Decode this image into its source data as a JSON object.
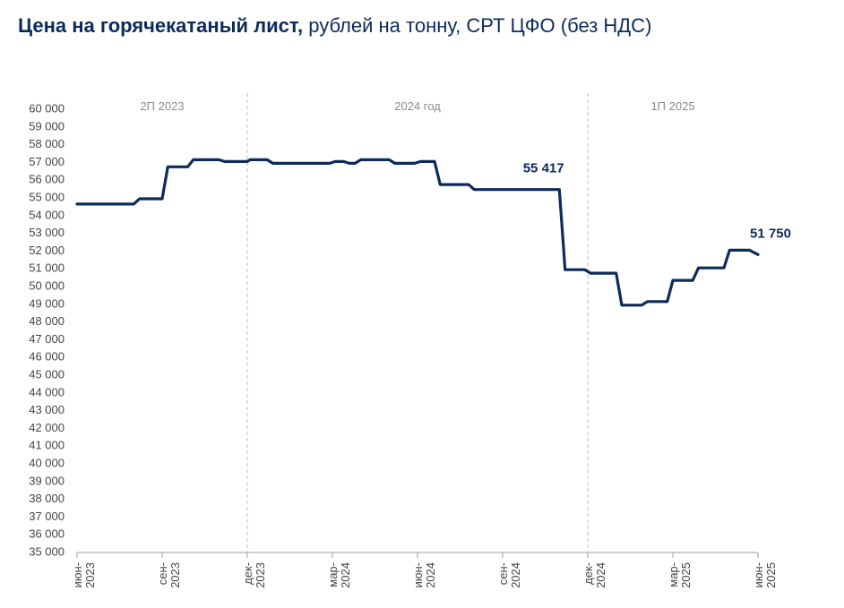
{
  "title_bold": "Цена на горячекатаный лист,",
  "title_rest": " рублей на тонну, СРТ ЦФО (без НДС)",
  "colors": {
    "line": "#0d2a5c",
    "title": "#0d2a5c",
    "axis": "#444444",
    "divider": "#bdbdbd",
    "period": "#8c8c8c"
  },
  "chart_data": {
    "type": "line",
    "title": "Цена на горячекатаный лист, рублей на тонну, СРТ ЦФО (без НДС)",
    "xlabel": "",
    "ylabel": "",
    "ylim": [
      35000,
      60000
    ],
    "ytick_step": 1000,
    "grid": false,
    "x_ticks": [
      {
        "line1": "июн-",
        "line2": "2023",
        "x": 0
      },
      {
        "line1": "сен-",
        "line2": "2023",
        "x": 3
      },
      {
        "line1": "дек-",
        "line2": "2023",
        "x": 6
      },
      {
        "line1": "мар-",
        "line2": "2024",
        "x": 9
      },
      {
        "line1": "июн-",
        "line2": "2024",
        "x": 12
      },
      {
        "line1": "сен-",
        "line2": "2024",
        "x": 15
      },
      {
        "line1": "дек-",
        "line2": "2024",
        "x": 18
      },
      {
        "line1": "мар-",
        "line2": "2025",
        "x": 21
      },
      {
        "line1": "июн-",
        "line2": "2025",
        "x": 24
      }
    ],
    "periods": [
      {
        "label": "2П 2023",
        "from": 0,
        "to": 6
      },
      {
        "label": "2024 год",
        "from": 6,
        "to": 18
      },
      {
        "label": "1П 2025",
        "from": 18,
        "to": 24
      }
    ],
    "dividers": [
      6,
      18
    ],
    "series": [
      {
        "name": "",
        "points": [
          [
            0,
            54600
          ],
          [
            2,
            54600
          ],
          [
            2.2,
            54900
          ],
          [
            3,
            54900
          ],
          [
            3.2,
            56700
          ],
          [
            3.9,
            56700
          ],
          [
            4.1,
            57100
          ],
          [
            5.0,
            57100
          ],
          [
            5.2,
            57000
          ],
          [
            6.0,
            57000
          ],
          [
            6.1,
            57100
          ],
          [
            6.7,
            57100
          ],
          [
            6.9,
            56900
          ],
          [
            8.9,
            56900
          ],
          [
            9.1,
            57000
          ],
          [
            9.4,
            57000
          ],
          [
            9.6,
            56900
          ],
          [
            9.8,
            56900
          ],
          [
            10.0,
            57100
          ],
          [
            11.0,
            57100
          ],
          [
            11.2,
            56900
          ],
          [
            11.9,
            56900
          ],
          [
            12.1,
            57000
          ],
          [
            12.6,
            57000
          ],
          [
            12.8,
            55700
          ],
          [
            13.8,
            55700
          ],
          [
            14.0,
            55417
          ],
          [
            17.0,
            55417
          ],
          [
            17.2,
            50900
          ],
          [
            17.9,
            50900
          ],
          [
            18.1,
            50700
          ],
          [
            19.0,
            50700
          ],
          [
            19.2,
            48900
          ],
          [
            19.9,
            48900
          ],
          [
            20.1,
            49100
          ],
          [
            20.8,
            49100
          ],
          [
            21.0,
            50300
          ],
          [
            21.7,
            50300
          ],
          [
            21.9,
            51000
          ],
          [
            22.8,
            51000
          ],
          [
            23.0,
            52000
          ],
          [
            23.7,
            52000
          ],
          [
            24.0,
            51750
          ]
        ]
      }
    ],
    "annotations": [
      {
        "text": "55 417",
        "x": 16.0,
        "y": 55417
      },
      {
        "text": "51 750",
        "x": 24.0,
        "y": 51750
      }
    ]
  }
}
